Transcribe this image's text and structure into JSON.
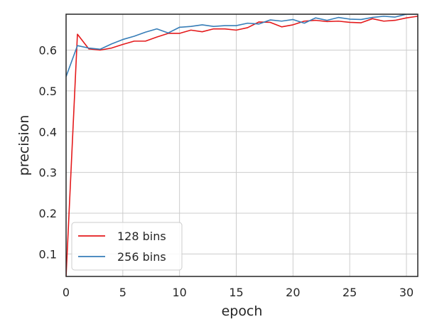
{
  "chart_data": {
    "type": "line",
    "xlabel": "epoch",
    "ylabel": "precision",
    "xlim": [
      0,
      31
    ],
    "ylim": [
      0.045,
      0.688
    ],
    "xticks": [
      0,
      5,
      10,
      15,
      20,
      25,
      30
    ],
    "xtick_labels": [
      "0",
      "5",
      "10",
      "15",
      "20",
      "25",
      "30"
    ],
    "yticks": [
      0.1,
      0.2,
      0.3,
      0.4,
      0.5,
      0.6
    ],
    "ytick_labels": [
      "0.1",
      "0.2",
      "0.3",
      "0.4",
      "0.5",
      "0.6"
    ],
    "grid": true,
    "legend_position": "bottom-left",
    "x": [
      0,
      1,
      2,
      3,
      4,
      5,
      6,
      7,
      8,
      9,
      10,
      11,
      12,
      13,
      14,
      15,
      16,
      17,
      18,
      19,
      20,
      21,
      22,
      23,
      24,
      25,
      26,
      27,
      28,
      29,
      30,
      31
    ],
    "series": [
      {
        "name": "128 bins",
        "color": "#e41a1c",
        "values": [
          0.045,
          0.639,
          0.603,
          0.6,
          0.605,
          0.614,
          0.622,
          0.622,
          0.632,
          0.641,
          0.641,
          0.649,
          0.645,
          0.652,
          0.652,
          0.649,
          0.655,
          0.669,
          0.668,
          0.657,
          0.662,
          0.671,
          0.673,
          0.67,
          0.671,
          0.668,
          0.667,
          0.677,
          0.671,
          0.673,
          0.679,
          0.683
        ]
      },
      {
        "name": "256 bins",
        "color": "#377eb8",
        "values": [
          0.535,
          0.611,
          0.605,
          0.602,
          0.615,
          0.626,
          0.634,
          0.644,
          0.652,
          0.642,
          0.656,
          0.658,
          0.662,
          0.658,
          0.66,
          0.66,
          0.666,
          0.664,
          0.674,
          0.671,
          0.675,
          0.666,
          0.679,
          0.673,
          0.68,
          0.676,
          0.675,
          0.68,
          0.683,
          0.681,
          0.688,
          0.688
        ]
      }
    ]
  }
}
